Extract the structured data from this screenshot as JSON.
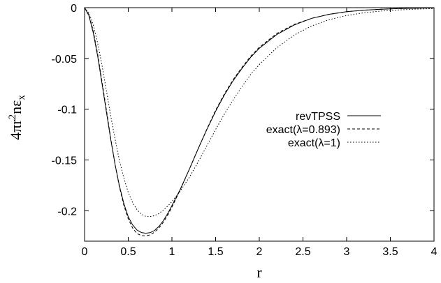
{
  "chart_data": {
    "type": "line",
    "xlabel": "r",
    "ylabel": {
      "base": "4πr",
      "sup": "2",
      "mid": "nε",
      "sub": "x"
    },
    "xlim": [
      0,
      4
    ],
    "ylim": [
      -0.23,
      0
    ],
    "xticks": [
      "0",
      "0.5",
      "1",
      "1.5",
      "2",
      "2.5",
      "3",
      "3.5",
      "4"
    ],
    "yticks": [
      "0",
      "-0.05",
      "-0.1",
      "-0.15",
      "-0.2"
    ],
    "grid": false,
    "legend_position": "right",
    "series": [
      {
        "name": "revTPSS",
        "style": "solid",
        "x": [
          0,
          0.05,
          0.1,
          0.15,
          0.2,
          0.25,
          0.3,
          0.35,
          0.4,
          0.45,
          0.5,
          0.55,
          0.6,
          0.65,
          0.7,
          0.75,
          0.8,
          0.85,
          0.9,
          0.95,
          1.0,
          1.1,
          1.2,
          1.3,
          1.4,
          1.5,
          1.6,
          1.7,
          1.8,
          1.9,
          2.0,
          2.2,
          2.4,
          2.6,
          2.8,
          3.0,
          3.2,
          3.4,
          3.6,
          3.8,
          4.0
        ],
        "y": [
          0,
          -0.008,
          -0.025,
          -0.048,
          -0.075,
          -0.103,
          -0.13,
          -0.155,
          -0.176,
          -0.193,
          -0.206,
          -0.214,
          -0.219,
          -0.2215,
          -0.2222,
          -0.2216,
          -0.2195,
          -0.2155,
          -0.21,
          -0.203,
          -0.195,
          -0.178,
          -0.159,
          -0.139,
          -0.12,
          -0.102,
          -0.086,
          -0.072,
          -0.06,
          -0.049,
          -0.04,
          -0.0265,
          -0.017,
          -0.0105,
          -0.0065,
          -0.004,
          -0.0025,
          -0.0015,
          -0.0009,
          -0.0005,
          -0.0003
        ]
      },
      {
        "name": "exact(λ=0.893)",
        "style": "dashed",
        "x": [
          0,
          0.05,
          0.1,
          0.15,
          0.2,
          0.25,
          0.3,
          0.35,
          0.4,
          0.45,
          0.5,
          0.55,
          0.6,
          0.65,
          0.7,
          0.75,
          0.8,
          0.85,
          0.9,
          0.95,
          1.0,
          1.1,
          1.2,
          1.3,
          1.4,
          1.5,
          1.6,
          1.7,
          1.8,
          1.9,
          2.0,
          2.2,
          2.4,
          2.6,
          2.8,
          3.0,
          3.2,
          3.4,
          3.6,
          3.8,
          4.0
        ],
        "y": [
          0,
          -0.007,
          -0.023,
          -0.046,
          -0.073,
          -0.101,
          -0.129,
          -0.155,
          -0.177,
          -0.195,
          -0.208,
          -0.217,
          -0.2225,
          -0.2245,
          -0.2248,
          -0.2238,
          -0.2212,
          -0.217,
          -0.2115,
          -0.2045,
          -0.1965,
          -0.1785,
          -0.159,
          -0.139,
          -0.1195,
          -0.101,
          -0.085,
          -0.071,
          -0.059,
          -0.048,
          -0.039,
          -0.0255,
          -0.0165,
          -0.0105,
          -0.0065,
          -0.004,
          -0.0025,
          -0.0015,
          -0.0009,
          -0.0005,
          -0.0003
        ]
      },
      {
        "name": "exact(λ=1)",
        "style": "dotted",
        "x": [
          0,
          0.05,
          0.1,
          0.15,
          0.2,
          0.25,
          0.3,
          0.35,
          0.4,
          0.45,
          0.5,
          0.55,
          0.6,
          0.65,
          0.7,
          0.75,
          0.8,
          0.85,
          0.9,
          0.95,
          1.0,
          1.1,
          1.2,
          1.3,
          1.4,
          1.5,
          1.6,
          1.7,
          1.8,
          1.9,
          2.0,
          2.2,
          2.4,
          2.6,
          2.8,
          3.0,
          3.2,
          3.4,
          3.6,
          3.8,
          4.0
        ],
        "y": [
          0,
          -0.005,
          -0.017,
          -0.035,
          -0.057,
          -0.082,
          -0.107,
          -0.13,
          -0.151,
          -0.168,
          -0.182,
          -0.192,
          -0.199,
          -0.2035,
          -0.2055,
          -0.2058,
          -0.2048,
          -0.2028,
          -0.1995,
          -0.1955,
          -0.191,
          -0.18,
          -0.167,
          -0.152,
          -0.136,
          -0.12,
          -0.105,
          -0.091,
          -0.078,
          -0.066,
          -0.056,
          -0.0395,
          -0.027,
          -0.018,
          -0.0118,
          -0.0077,
          -0.005,
          -0.0033,
          -0.0022,
          -0.0014,
          -0.0009
        ]
      }
    ]
  }
}
